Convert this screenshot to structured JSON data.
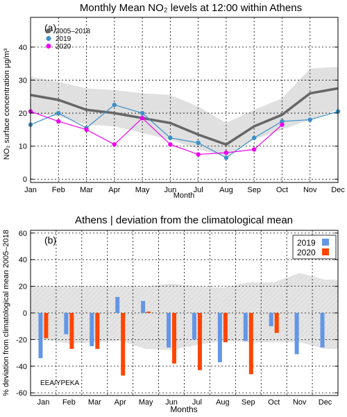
{
  "chart_data": [
    {
      "type": "line",
      "panel_label": "(a)",
      "title": "Monthly Mean NO₂ levels at 12:00 within Athens",
      "xlabel": "Month",
      "ylabel": "NO₂ surface concentration μg/m³",
      "categories": [
        "Jan",
        "Feb",
        "Mar",
        "Apr",
        "May",
        "Jun",
        "Jul",
        "Aug",
        "Sep",
        "Oct",
        "Nov",
        "Dec"
      ],
      "ylim": [
        -1,
        49
      ],
      "yticks": [
        0,
        10,
        20,
        30,
        40
      ],
      "grid": true,
      "legend_position": "top-left",
      "band": {
        "upper": [
          31,
          29.5,
          27.5,
          27,
          26,
          25.5,
          22,
          17,
          21,
          24.5,
          33.5,
          34
        ],
        "lower": [
          20,
          19,
          16.5,
          16,
          14,
          12,
          9,
          7,
          12,
          15,
          18,
          21
        ],
        "color": "#e0e0e0"
      },
      "series": [
        {
          "name": "2005–2018",
          "color": "#666666",
          "values": [
            25.5,
            24,
            21,
            20,
            18.5,
            17,
            13.5,
            10.5,
            16,
            19.5,
            26,
            27.5
          ]
        },
        {
          "name": "2019",
          "color": "#3a8fc9",
          "values": [
            16.5,
            20,
            15.5,
            22.5,
            20,
            12.5,
            11,
            6.5,
            12.5,
            17.5,
            18,
            20.5
          ]
        },
        {
          "name": "2020",
          "color": "#ee00ee",
          "values": [
            20.5,
            17.5,
            15,
            10.5,
            18.5,
            10.5,
            7.5,
            8,
            9,
            16.5,
            null,
            null
          ]
        }
      ]
    },
    {
      "type": "bar",
      "panel_label": "(b)",
      "title": "Athens | deviation from the climatological mean",
      "xlabel": "Months",
      "ylabel": "% deviation from climatological mean 2005–2018",
      "categories": [
        "Jan",
        "Feb",
        "Mar",
        "Apr",
        "May",
        "Jun",
        "Jul",
        "Aug",
        "Sep",
        "Oct",
        "Nov",
        "Dec"
      ],
      "ylim": [
        -62,
        62
      ],
      "yticks": [
        -60,
        -40,
        -20,
        0,
        20,
        40,
        60
      ],
      "grid": true,
      "legend_position": "top-right",
      "annotation": "EEA/YPEKA",
      "band": {
        "upper": [
          20,
          20,
          20,
          20,
          20,
          22,
          20,
          19,
          23,
          23,
          30,
          25
        ],
        "lower": [
          -20,
          -23,
          -22,
          -21,
          -27,
          -28,
          -24,
          -21,
          -22,
          -22,
          -22,
          -27
        ],
        "color": "#e6e6e6"
      },
      "series": [
        {
          "name": "2019",
          "color": "#6496e6",
          "values": [
            -34,
            -16,
            -25,
            12,
            9,
            -26,
            -20,
            -37,
            -21,
            -10,
            -31,
            -26
          ]
        },
        {
          "name": "2020",
          "color": "#ff4500",
          "values": [
            -19,
            -27,
            -27,
            -47,
            1,
            -38,
            -43,
            -22,
            -46,
            -15,
            null,
            null
          ]
        }
      ]
    }
  ]
}
